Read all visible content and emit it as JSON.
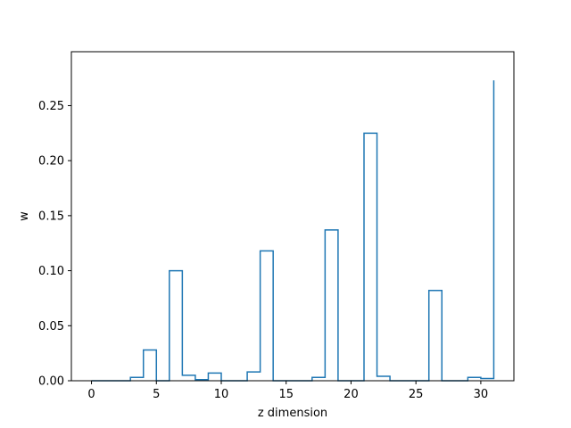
{
  "chart_data": {
    "type": "line",
    "style": "step-post",
    "title": "",
    "xlabel": "z dimension",
    "ylabel": "w",
    "xlim": [
      -1.55,
      32.55
    ],
    "ylim": [
      0.0,
      0.299
    ],
    "xticks": [
      0,
      5,
      10,
      15,
      20,
      25,
      30
    ],
    "yticks": [
      0.0,
      0.05,
      0.1,
      0.15,
      0.2,
      0.25
    ],
    "ytick_labels": [
      "0.00",
      "0.05",
      "0.10",
      "0.15",
      "0.20",
      "0.25"
    ],
    "grid": false,
    "line_color": "#1f77b4",
    "x": [
      0,
      1,
      2,
      3,
      4,
      5,
      6,
      7,
      8,
      9,
      10,
      11,
      12,
      13,
      14,
      15,
      16,
      17,
      18,
      19,
      20,
      21,
      22,
      23,
      24,
      25,
      26,
      27,
      28,
      29,
      30,
      31
    ],
    "y": [
      0.0,
      0.0,
      0.0,
      0.003,
      0.028,
      0.0,
      0.1,
      0.005,
      0.001,
      0.007,
      0.0,
      0.0,
      0.008,
      0.118,
      0.0,
      0.0,
      0.0,
      0.003,
      0.137,
      0.0,
      0.0,
      0.225,
      0.004,
      0.0,
      0.0,
      0.0,
      0.082,
      0.0,
      0.0,
      0.003,
      0.002,
      0.273
    ]
  }
}
